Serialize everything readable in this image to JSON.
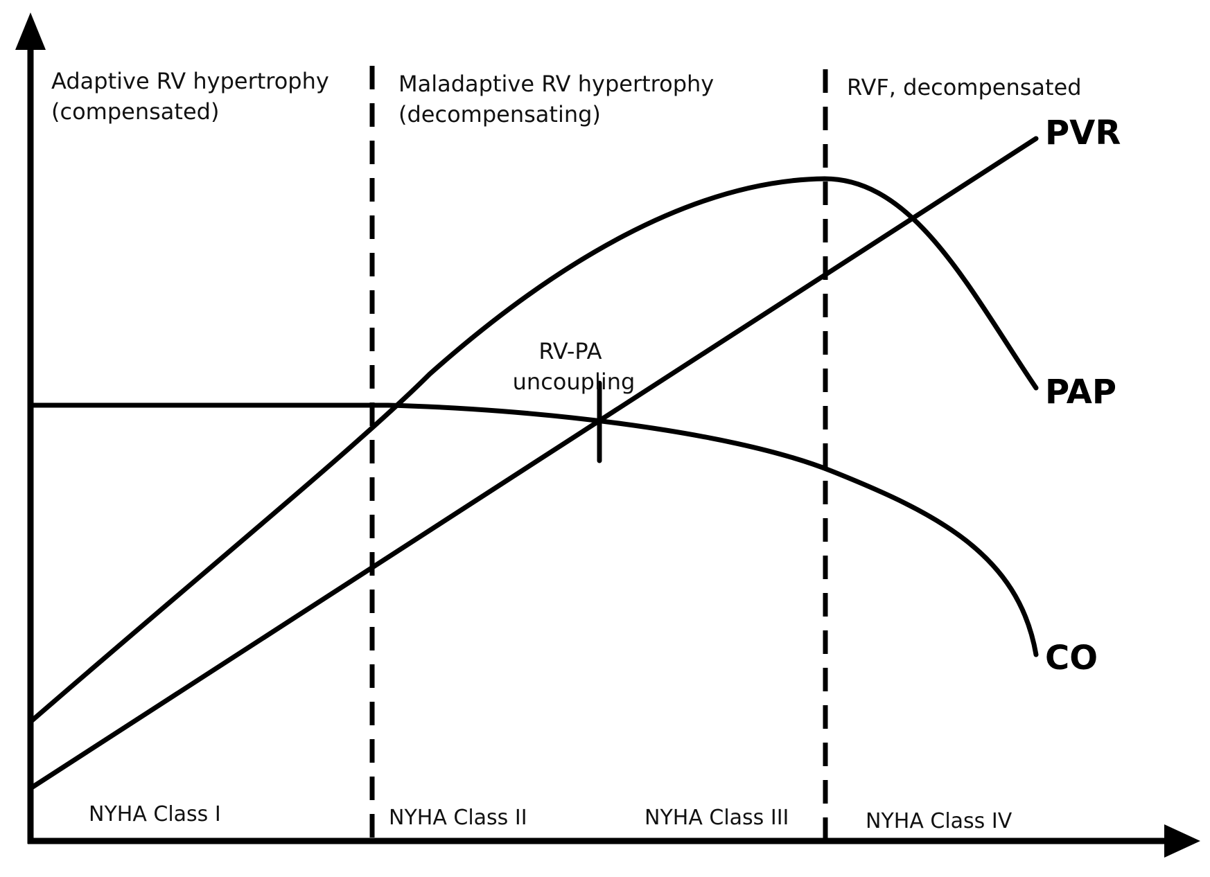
{
  "colors": {
    "ink": "#000000",
    "background": "#ffffff"
  },
  "phases": [
    {
      "line1": "Adaptive RV hypertrophy",
      "line2": "(compensated)"
    },
    {
      "line1": "Maladaptive RV hypertrophy",
      "line2": "(decompensating)"
    },
    {
      "line1": "RVF, decompensated",
      "line2": ""
    }
  ],
  "nyha_classes": [
    "NYHA Class I",
    "NYHA Class II",
    "NYHA Class III",
    "NYHA Class IV"
  ],
  "curves": {
    "pvr": "PVR",
    "pap": "PAP",
    "co": "CO"
  },
  "annotation": {
    "line1": "RV-PA",
    "line2": "uncoupling"
  }
}
